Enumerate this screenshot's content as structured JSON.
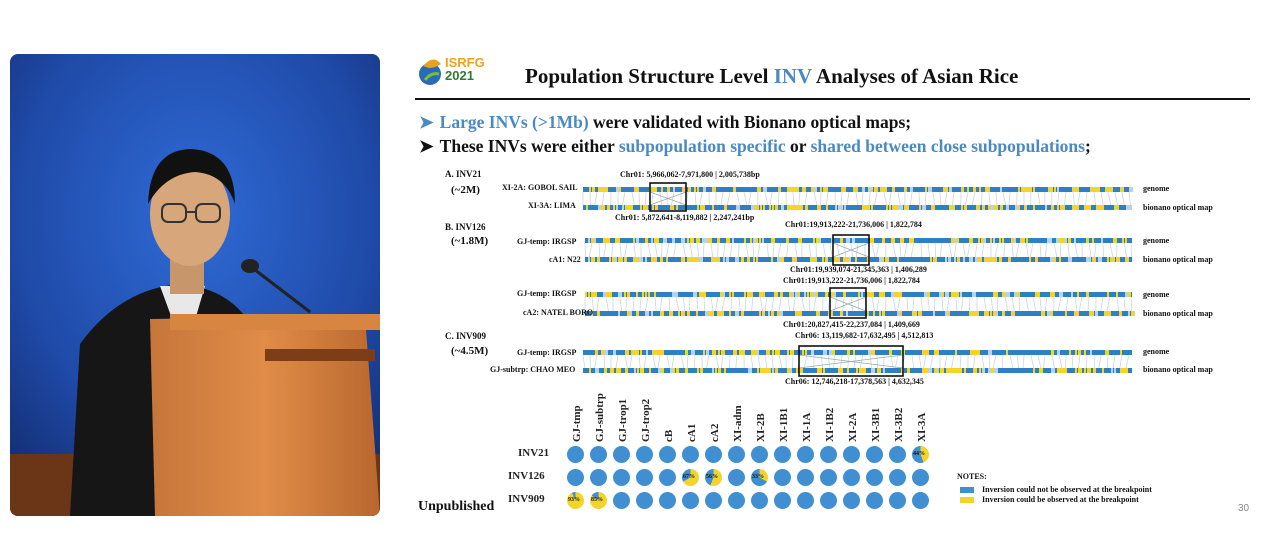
{
  "slide": {
    "logo": {
      "line1": "ISRFG",
      "line2": "2021"
    },
    "title_prefix": "Population Structure Level ",
    "title_highlight": "INV",
    "title_suffix": " Analyses of Asian Rice",
    "bullet1": {
      "highlight": "Large INVs (>1Mb)",
      "rest": " were validated with Bionano optical maps;"
    },
    "bullet2": {
      "p1": "These INVs were either ",
      "hl1": "subpopulation specific",
      "p2": " or ",
      "hl2": "shared between close subpopulations",
      "p3": ";"
    },
    "sections": {
      "a": {
        "label": "A. INV21",
        "approx": "(~2M)",
        "row1": "XI-2A: GOBOL SAIL",
        "row2": "XI-3A: LIMA",
        "top_coord": "Chr01: 5,966,062-7,971,800 | 2,005,738bp",
        "bottom_coord": "Chr01: 5,872,641-8,119,882 | 2,247,241bp"
      },
      "b": {
        "label": "B. INV126",
        "approx": "(~1.8M)",
        "row1": "GJ-temp: IRGSP",
        "row2": "cA1: N22",
        "top_coord": "Chr01:19,913,222-21,736,006 | 1,822,784",
        "bottom_coord": "Chr01:19,939,074-21,345,363 | 1,406,289",
        "row3": "GJ-temp: IRGSP",
        "row4": "cA2: NATEL BORO",
        "top_coord2": "Chr01:19,913,222-21,736,006 | 1,822,784",
        "bottom_coord2": "Chr01:20,827,415-22,237,084 | 1,409,669"
      },
      "c": {
        "label": "C. INV909",
        "approx": "(~4.5M)",
        "row1": "GJ-temp: IRGSP",
        "row2": "GJ-subtrp: CHAO MEO",
        "top_coord": "Chr06: 13,119,682-17,632,495 | 4,512,813",
        "bottom_coord": "Chr06: 12,746,218-17,378,563 | 4,632,345"
      }
    },
    "legend_genome": "genome",
    "legend_bionano": "bionano optical map",
    "columns": [
      "GJ-tmp",
      "GJ-subtrp",
      "GJ-trop1",
      "GJ-trop2",
      "cB",
      "cA1",
      "cA2",
      "XI-adm",
      "XI-2B",
      "XI-1B1",
      "XI-1A",
      "XI-1B2",
      "XI-2A",
      "XI-3B1",
      "XI-3B2",
      "XI-3A"
    ],
    "rows": [
      {
        "name": "INV21",
        "values": [
          0,
          0,
          0,
          0,
          0,
          0,
          0,
          0,
          0,
          0,
          0,
          0,
          0,
          0,
          0,
          0.44
        ],
        "labels": [
          "",
          "",
          "",
          "",
          "",
          "",
          "",
          "",
          "",
          "",
          "",
          "",
          "",
          "",
          "",
          "44%"
        ]
      },
      {
        "name": "INV126",
        "values": [
          0,
          0,
          0,
          0,
          0,
          0.67,
          0.56,
          0,
          0.33,
          0,
          0,
          0,
          0,
          0,
          0,
          0
        ],
        "labels": [
          "",
          "",
          "",
          "",
          "",
          "67%",
          "56%",
          "",
          "33%",
          "",
          "",
          "",
          "",
          "",
          "",
          ""
        ]
      },
      {
        "name": "INV909",
        "values": [
          0.93,
          0.85,
          0,
          0,
          0,
          0,
          0,
          0,
          0,
          0,
          0,
          0,
          0,
          0,
          0,
          0
        ],
        "labels": [
          "93%",
          "85%",
          "",
          "",
          "",
          "",
          "",
          "",
          "",
          "",
          "",
          "",
          "",
          "",
          "",
          ""
        ]
      }
    ],
    "unpublished": "Unpublished",
    "notes_title": "NOTES:",
    "note1": "Inversion could not be observed at the breakpoint",
    "note2": "Inversion could be observed at the breakpoint",
    "colors": {
      "absent": "#3f8fd2",
      "present": "#f2d42a",
      "accent": "#4a8ac4"
    },
    "page_number": "30"
  }
}
